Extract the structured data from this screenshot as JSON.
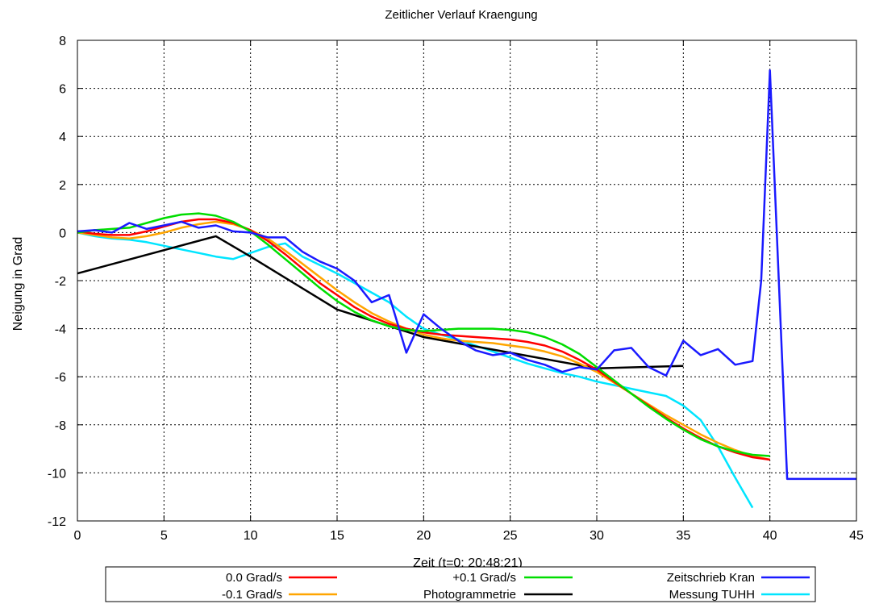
{
  "chart_data": {
    "type": "line",
    "title": "Zeitlicher Verlauf Kraengung",
    "xlabel": "Zeit (t=0: 20:48:21)",
    "ylabel": "Neigung in Grad",
    "xlim": [
      0,
      45
    ],
    "ylim": [
      -12,
      8
    ],
    "xticks": [
      0,
      5,
      10,
      15,
      20,
      25,
      30,
      35,
      40,
      45
    ],
    "yticks": [
      -12,
      -10,
      -8,
      -6,
      -4,
      -2,
      0,
      2,
      4,
      6,
      8
    ],
    "grid": true,
    "legend_position": "bottom",
    "series": [
      {
        "name": "0.0 Grad/s",
        "color": "#ff0000",
        "x": [
          0,
          1,
          2,
          3,
          4,
          5,
          6,
          7,
          8,
          9,
          10,
          11,
          12,
          13,
          14,
          15,
          16,
          17,
          18,
          19,
          20,
          21,
          22,
          23,
          24,
          25,
          26,
          27,
          28,
          29,
          30,
          31,
          32,
          33,
          34,
          35,
          36,
          37,
          38,
          39,
          40
        ],
        "y": [
          0.05,
          -0.05,
          -0.1,
          -0.1,
          0.05,
          0.25,
          0.45,
          0.55,
          0.55,
          0.4,
          0.1,
          -0.35,
          -0.9,
          -1.5,
          -2.1,
          -2.6,
          -3.1,
          -3.5,
          -3.8,
          -4.0,
          -4.15,
          -4.25,
          -4.3,
          -4.35,
          -4.4,
          -4.45,
          -4.55,
          -4.7,
          -4.95,
          -5.3,
          -5.7,
          -6.2,
          -6.7,
          -7.2,
          -7.7,
          -8.15,
          -8.55,
          -8.9,
          -9.15,
          -9.35,
          -9.45
        ]
      },
      {
        "name": "+0.1 Grad/s",
        "color": "#00dd00",
        "x": [
          0,
          1,
          2,
          3,
          4,
          5,
          6,
          7,
          8,
          9,
          10,
          11,
          12,
          13,
          14,
          15,
          16,
          17,
          18,
          19,
          20,
          21,
          22,
          23,
          24,
          25,
          26,
          27,
          28,
          29,
          30,
          31,
          32,
          33,
          34,
          35,
          36,
          37,
          38,
          39,
          40
        ],
        "y": [
          0.0,
          0.1,
          0.15,
          0.2,
          0.4,
          0.6,
          0.75,
          0.8,
          0.7,
          0.45,
          0.05,
          -0.5,
          -1.1,
          -1.7,
          -2.3,
          -2.85,
          -3.3,
          -3.65,
          -3.9,
          -4.05,
          -4.1,
          -4.05,
          -4.0,
          -4.0,
          -4.0,
          -4.05,
          -4.15,
          -4.35,
          -4.65,
          -5.05,
          -5.6,
          -6.15,
          -6.7,
          -7.25,
          -7.75,
          -8.2,
          -8.6,
          -8.9,
          -9.1,
          -9.25,
          -9.3
        ]
      },
      {
        "name": "Zeitschrieb Kran",
        "color": "#1a1aff",
        "x": [
          0,
          1,
          2,
          3,
          4,
          5,
          6,
          7,
          8,
          9,
          10,
          11,
          12,
          13,
          14,
          15,
          16,
          17,
          18,
          19,
          20,
          21,
          22,
          23,
          24,
          25,
          26,
          27,
          28,
          29,
          30,
          31,
          32,
          33,
          34,
          35,
          36,
          37,
          38,
          39,
          39.5,
          40,
          41,
          45
        ],
        "y": [
          0.05,
          0.1,
          0.0,
          0.4,
          0.15,
          0.3,
          0.45,
          0.2,
          0.3,
          0.05,
          0.0,
          -0.2,
          -0.2,
          -0.8,
          -1.2,
          -1.5,
          -2.0,
          -2.9,
          -2.6,
          -5.0,
          -3.4,
          -4.0,
          -4.5,
          -4.9,
          -5.1,
          -5.0,
          -5.3,
          -5.5,
          -5.8,
          -5.6,
          -5.7,
          -4.9,
          -4.8,
          -5.6,
          -5.95,
          -4.5,
          -5.1,
          -4.85,
          -5.5,
          -5.35,
          -2.0,
          6.75,
          -10.25,
          -10.25
        ]
      },
      {
        "name": "-0.1 Grad/s",
        "color": "#ffa500",
        "x": [
          0,
          1,
          2,
          3,
          4,
          5,
          6,
          7,
          8,
          9,
          10,
          11,
          12,
          13,
          14,
          15,
          16,
          17,
          18,
          19,
          20,
          21,
          22,
          23,
          24,
          25,
          26,
          27,
          28,
          29,
          30,
          31,
          32,
          33,
          34,
          35,
          36,
          37,
          38,
          39,
          40
        ],
        "y": [
          0.0,
          -0.1,
          -0.2,
          -0.25,
          -0.15,
          0.0,
          0.2,
          0.35,
          0.45,
          0.35,
          0.1,
          -0.25,
          -0.75,
          -1.3,
          -1.85,
          -2.4,
          -2.9,
          -3.35,
          -3.7,
          -4.0,
          -4.25,
          -4.4,
          -4.5,
          -4.55,
          -4.6,
          -4.7,
          -4.8,
          -4.95,
          -5.15,
          -5.45,
          -5.8,
          -6.25,
          -6.7,
          -7.15,
          -7.6,
          -8.0,
          -8.4,
          -8.75,
          -9.05,
          -9.3,
          -9.45
        ]
      },
      {
        "name": "Photogrammetrie",
        "color": "#000000",
        "x": [
          0,
          8,
          10,
          15,
          20,
          25,
          30,
          35
        ],
        "y": [
          -1.7,
          -0.15,
          -1.0,
          -3.2,
          -4.35,
          -5.0,
          -5.65,
          -5.55
        ]
      },
      {
        "name": "Messung TUHH",
        "color": "#00e5ff",
        "x": [
          0,
          1,
          2,
          3,
          4,
          5,
          6,
          7,
          8,
          9,
          10,
          11,
          12,
          13,
          14,
          15,
          16,
          17,
          18,
          19,
          20,
          21,
          22,
          23,
          24,
          25,
          26,
          27,
          28,
          29,
          30,
          31,
          32,
          33,
          34,
          35,
          36,
          37,
          38,
          39
        ],
        "y": [
          0.0,
          -0.15,
          -0.25,
          -0.3,
          -0.4,
          -0.55,
          -0.7,
          -0.85,
          -1.0,
          -1.1,
          -0.85,
          -0.6,
          -0.45,
          -1.0,
          -1.35,
          -1.7,
          -2.1,
          -2.5,
          -2.9,
          -3.5,
          -4.0,
          -4.25,
          -4.45,
          -4.7,
          -4.95,
          -5.2,
          -5.45,
          -5.65,
          -5.85,
          -6.0,
          -6.2,
          -6.35,
          -6.5,
          -6.65,
          -6.8,
          -7.2,
          -7.8,
          -8.9,
          -10.2,
          -11.45
        ]
      }
    ]
  }
}
